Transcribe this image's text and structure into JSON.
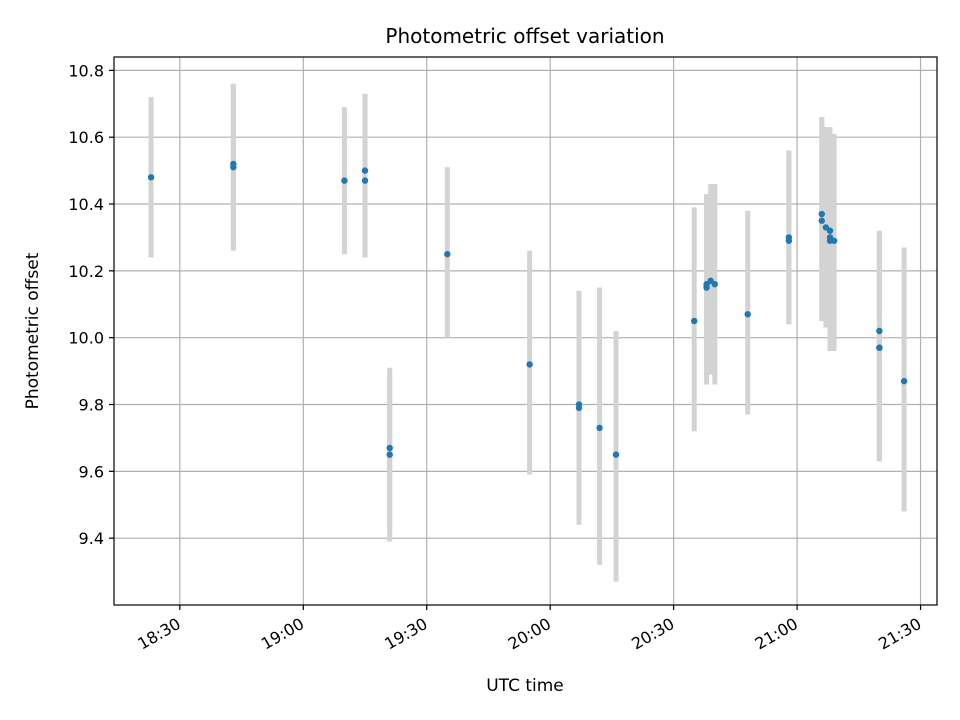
{
  "chart_data": {
    "type": "scatter",
    "title": "Photometric offset variation",
    "xlabel": "UTC time",
    "ylabel": "Photometric offset",
    "x_tick_labels": [
      "18:30",
      "19:00",
      "19:30",
      "20:00",
      "20:30",
      "21:00",
      "21:30"
    ],
    "y_tick_labels": [
      "9.4",
      "9.6",
      "9.8",
      "10.0",
      "10.2",
      "10.4",
      "10.6",
      "10.8"
    ],
    "xlim": [
      "18:14",
      "21:34"
    ],
    "ylim": [
      9.2,
      10.84
    ],
    "grid": true,
    "point_color": "#1f77b4",
    "errorbar_color": "#d3d3d3",
    "points": [
      {
        "x": "18:23",
        "y": 10.48,
        "ylow": 10.24,
        "yhigh": 10.72
      },
      {
        "x": "18:43",
        "y": 10.52,
        "ylow": 10.28,
        "yhigh": 10.76
      },
      {
        "x": "18:43",
        "y": 10.51,
        "ylow": 10.26,
        "yhigh": 10.76
      },
      {
        "x": "19:10",
        "y": 10.47,
        "ylow": 10.25,
        "yhigh": 10.69
      },
      {
        "x": "19:15",
        "y": 10.5,
        "ylow": 10.27,
        "yhigh": 10.73
      },
      {
        "x": "19:15",
        "y": 10.47,
        "ylow": 10.24,
        "yhigh": 10.69
      },
      {
        "x": "19:21",
        "y": 9.67,
        "ylow": 9.42,
        "yhigh": 9.91
      },
      {
        "x": "19:21",
        "y": 9.65,
        "ylow": 9.39,
        "yhigh": 9.9
      },
      {
        "x": "19:35",
        "y": 10.25,
        "ylow": 10.0,
        "yhigh": 10.51
      },
      {
        "x": "19:55",
        "y": 9.92,
        "ylow": 9.59,
        "yhigh": 10.26
      },
      {
        "x": "20:07",
        "y": 9.8,
        "ylow": 9.45,
        "yhigh": 10.14
      },
      {
        "x": "20:07",
        "y": 9.79,
        "ylow": 9.44,
        "yhigh": 10.13
      },
      {
        "x": "20:12",
        "y": 9.73,
        "ylow": 9.32,
        "yhigh": 10.15
      },
      {
        "x": "20:16",
        "y": 9.65,
        "ylow": 9.27,
        "yhigh": 10.02
      },
      {
        "x": "20:35",
        "y": 10.05,
        "ylow": 9.72,
        "yhigh": 10.39
      },
      {
        "x": "20:38",
        "y": 10.15,
        "ylow": 9.86,
        "yhigh": 10.43
      },
      {
        "x": "20:38",
        "y": 10.16,
        "ylow": 9.88,
        "yhigh": 10.42
      },
      {
        "x": "20:39",
        "y": 10.17,
        "ylow": 9.89,
        "yhigh": 10.46
      },
      {
        "x": "20:40",
        "y": 10.16,
        "ylow": 9.86,
        "yhigh": 10.46
      },
      {
        "x": "20:48",
        "y": 10.07,
        "ylow": 9.77,
        "yhigh": 10.38
      },
      {
        "x": "20:58",
        "y": 10.3,
        "ylow": 10.04,
        "yhigh": 10.56
      },
      {
        "x": "20:58",
        "y": 10.29,
        "ylow": 10.04,
        "yhigh": 10.55
      },
      {
        "x": "21:06",
        "y": 10.35,
        "ylow": 10.05,
        "yhigh": 10.66
      },
      {
        "x": "21:06",
        "y": 10.37,
        "ylow": 10.06,
        "yhigh": 10.66
      },
      {
        "x": "21:07",
        "y": 10.33,
        "ylow": 10.03,
        "yhigh": 10.63
      },
      {
        "x": "21:08",
        "y": 10.32,
        "ylow": 10.0,
        "yhigh": 10.63
      },
      {
        "x": "21:08",
        "y": 10.3,
        "ylow": 9.98,
        "yhigh": 10.62
      },
      {
        "x": "21:08",
        "y": 10.29,
        "ylow": 9.96,
        "yhigh": 10.61
      },
      {
        "x": "21:09",
        "y": 10.29,
        "ylow": 9.96,
        "yhigh": 10.61
      },
      {
        "x": "21:20",
        "y": 10.02,
        "ylow": 9.63,
        "yhigh": 10.32
      },
      {
        "x": "21:20",
        "y": 9.97,
        "ylow": 9.63,
        "yhigh": 10.31
      },
      {
        "x": "21:20",
        "y": 9.97,
        "ylow": 9.63,
        "yhigh": 10.31
      },
      {
        "x": "21:26",
        "y": 9.87,
        "ylow": 9.48,
        "yhigh": 10.27
      }
    ]
  }
}
